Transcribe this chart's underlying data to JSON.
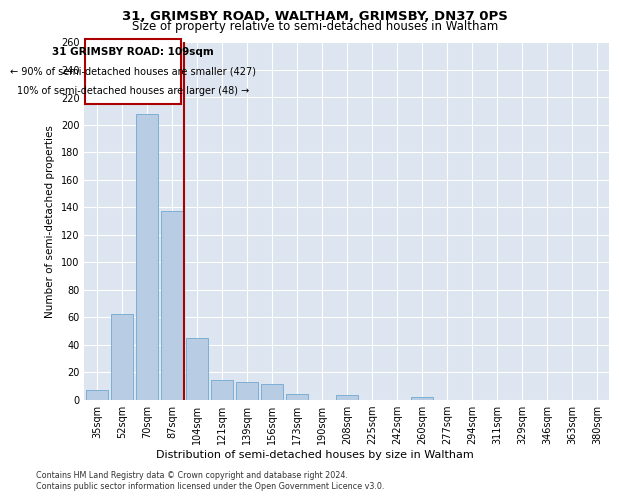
{
  "title": "31, GRIMSBY ROAD, WALTHAM, GRIMSBY, DN37 0PS",
  "subtitle": "Size of property relative to semi-detached houses in Waltham",
  "xlabel": "Distribution of semi-detached houses by size in Waltham",
  "ylabel": "Number of semi-detached properties",
  "categories": [
    "35sqm",
    "52sqm",
    "70sqm",
    "87sqm",
    "104sqm",
    "121sqm",
    "139sqm",
    "156sqm",
    "173sqm",
    "190sqm",
    "208sqm",
    "225sqm",
    "242sqm",
    "260sqm",
    "277sqm",
    "294sqm",
    "311sqm",
    "329sqm",
    "346sqm",
    "363sqm",
    "380sqm"
  ],
  "values": [
    7,
    62,
    208,
    137,
    45,
    14,
    13,
    11,
    4,
    0,
    3,
    0,
    0,
    2,
    0,
    0,
    0,
    0,
    0,
    0,
    0
  ],
  "bar_color": "#b8cce4",
  "bar_edge_color": "#7bafd4",
  "bg_color": "#dde5f0",
  "grid_color": "#ffffff",
  "vline_x": 3.5,
  "vline_color": "#aa0000",
  "annotation_title": "31 GRIMSBY ROAD: 109sqm",
  "annotation_line1": "← 90% of semi-detached houses are smaller (427)",
  "annotation_line2": "10% of semi-detached houses are larger (48) →",
  "box_color": "#aa0000",
  "footer1": "Contains HM Land Registry data © Crown copyright and database right 2024.",
  "footer2": "Contains public sector information licensed under the Open Government Licence v3.0.",
  "ylim": [
    0,
    260
  ],
  "yticks": [
    0,
    20,
    40,
    60,
    80,
    100,
    120,
    140,
    160,
    180,
    200,
    220,
    240,
    260
  ]
}
